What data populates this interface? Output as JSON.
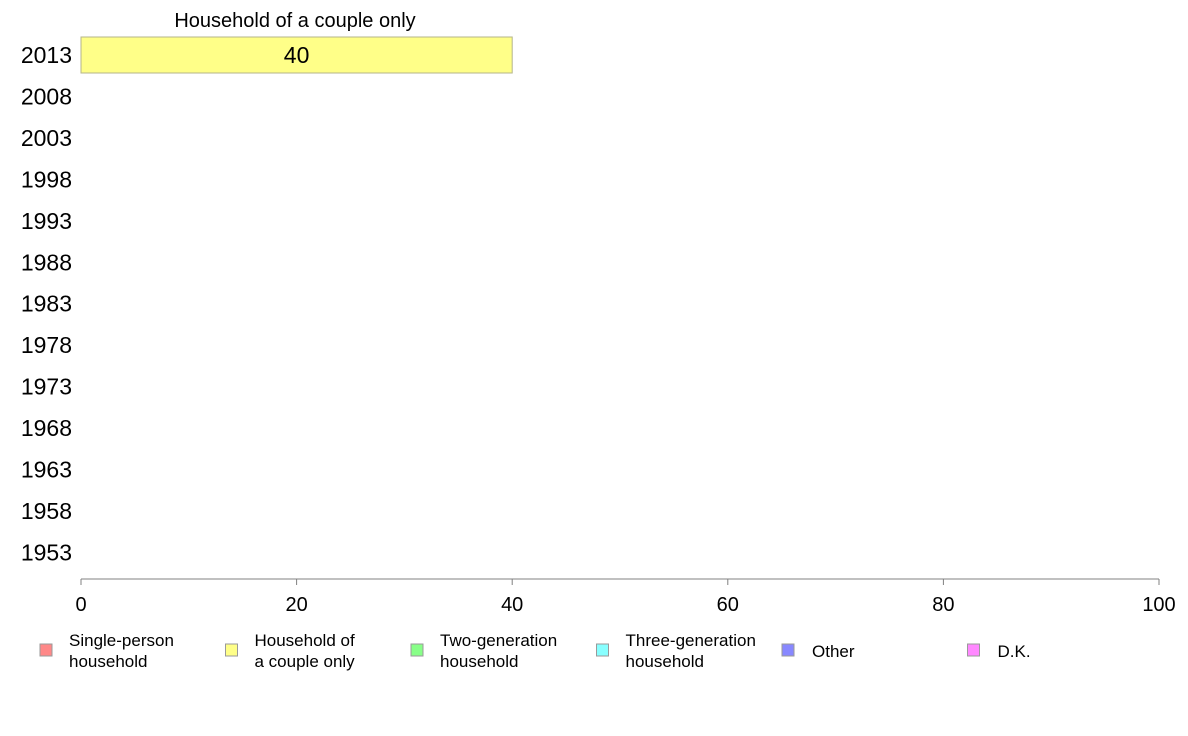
{
  "chart_data": {
    "type": "bar",
    "orientation": "horizontal",
    "title": "Household of a couple only",
    "categories": [
      "2013",
      "2008",
      "2003",
      "1998",
      "1993",
      "1988",
      "1983",
      "1978",
      "1973",
      "1968",
      "1963",
      "1958",
      "1953"
    ],
    "series": [
      {
        "name": "Household of a couple only",
        "color": "#ffff88",
        "values": [
          40,
          null,
          null,
          null,
          null,
          null,
          null,
          null,
          null,
          null,
          null,
          null,
          null
        ],
        "data_labels": [
          "40",
          "",
          "",
          "",
          "",
          "",
          "",
          "",
          "",
          "",
          "",
          "",
          ""
        ]
      }
    ],
    "xlim": [
      0,
      100
    ],
    "xticks": [
      0,
      20,
      40,
      60,
      80,
      100
    ],
    "xtick_labels": [
      "0",
      "20",
      "40",
      "60",
      "80",
      "100"
    ],
    "grid": false,
    "legend": {
      "position": "bottom",
      "items": [
        {
          "lines": [
            "Single-person",
            "household"
          ],
          "color": "#ff8888",
          "icon": "legend-swatch"
        },
        {
          "lines": [
            "Household of",
            "a couple only"
          ],
          "color": "#ffff88",
          "icon": "legend-swatch"
        },
        {
          "lines": [
            "Two-generation",
            "household"
          ],
          "color": "#88ff88",
          "icon": "legend-swatch"
        },
        {
          "lines": [
            "Three-generation",
            "household"
          ],
          "color": "#88ffff",
          "icon": "legend-swatch"
        },
        {
          "lines": [
            "Other"
          ],
          "color": "#8888ff",
          "icon": "legend-swatch"
        },
        {
          "lines": [
            "D.K."
          ],
          "color": "#ff88ff",
          "icon": "legend-swatch"
        }
      ]
    }
  }
}
